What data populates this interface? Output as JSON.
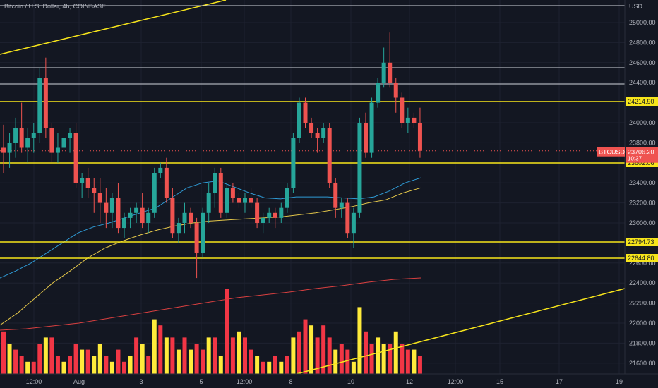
{
  "header": {
    "symbol_title": "Bitcoin / U.S. Dollar, 4h, COINBASE"
  },
  "axis": {
    "currency": "USD",
    "y_ticks": [
      25000,
      24800,
      24600,
      24400,
      24000,
      23800,
      23400,
      23200,
      23000,
      22600,
      22400,
      22200,
      22000,
      21800,
      21600
    ],
    "y_tick_labels": [
      "25000.00",
      "24800.00",
      "24600.00",
      "24400.00",
      "24000.00",
      "23800.00",
      "23400.00",
      "23200.00",
      "23000.00",
      "22600.00",
      "22400.00",
      "22200.00",
      "22000.00",
      "21800.00",
      "21600.00"
    ],
    "x_ticks": [
      "12:00",
      "Aug",
      "3",
      "5",
      "12:00",
      "8",
      "10",
      "12",
      "12:00",
      "15",
      "17",
      "19"
    ]
  },
  "price_tag": {
    "symbol": "BTCUSD",
    "price": "23706.20",
    "countdown": "10:37",
    "value": 23706.2
  },
  "levels": [
    {
      "label": "24214.90",
      "value": 24214.9
    },
    {
      "label": "23602.06",
      "value": 23602.06
    },
    {
      "label": "22794.73",
      "value": 22794.73
    },
    {
      "label": "22644.80",
      "value": 22644.8
    }
  ],
  "colors": {
    "background": "#131722",
    "up": "#26a69a",
    "down": "#ef5350",
    "level_line": "#f7e51b",
    "white_line": "#d1d4dc",
    "ma_blue": "#2f9bd6",
    "ma_yellow": "#e3c64a",
    "ma_red": "#d94040",
    "vol_red": "#f23645",
    "vol_yellow": "#ffeb3b"
  },
  "chart_data": {
    "type": "candlestick",
    "title": "Bitcoin / U.S. Dollar, 4h, COINBASE",
    "ylim": [
      21500,
      25200
    ],
    "candles": [
      [
        23750,
        23980,
        23500,
        23700
      ],
      [
        23700,
        23900,
        23550,
        23800
      ],
      [
        23800,
        24050,
        23650,
        23950
      ],
      [
        23950,
        24200,
        23700,
        23750
      ],
      [
        23750,
        23950,
        23600,
        23850
      ],
      [
        23850,
        24000,
        23700,
        23900
      ],
      [
        23900,
        24550,
        23800,
        24450
      ],
      [
        24450,
        24650,
        23850,
        23950
      ],
      [
        23950,
        24000,
        23600,
        23700
      ],
      [
        23700,
        23900,
        23600,
        23750
      ],
      [
        23750,
        23950,
        23650,
        23850
      ],
      [
        23850,
        23950,
        23700,
        23900
      ],
      [
        23900,
        24000,
        23350,
        23400
      ],
      [
        23400,
        23500,
        23250,
        23450
      ],
      [
        23450,
        23550,
        23250,
        23350
      ],
      [
        23350,
        23450,
        23100,
        23300
      ],
      [
        23300,
        23450,
        23000,
        23200
      ],
      [
        23200,
        23350,
        22950,
        23100
      ],
      [
        23100,
        23300,
        22950,
        23250
      ],
      [
        23250,
        23400,
        22900,
        22950
      ],
      [
        22950,
        23100,
        22850,
        23050
      ],
      [
        23050,
        23150,
        22950,
        23100
      ],
      [
        23100,
        23200,
        23000,
        23150
      ],
      [
        23150,
        23300,
        22950,
        23000
      ],
      [
        23000,
        23150,
        22900,
        23100
      ],
      [
        23100,
        23550,
        23050,
        23500
      ],
      [
        23500,
        23600,
        23450,
        23550
      ],
      [
        23550,
        23650,
        23200,
        23250
      ],
      [
        23250,
        23350,
        22850,
        22900
      ],
      [
        22900,
        23050,
        22800,
        23000
      ],
      [
        23000,
        23200,
        22900,
        23100
      ],
      [
        23100,
        23150,
        22950,
        23000
      ],
      [
        23000,
        23050,
        22450,
        22700
      ],
      [
        22700,
        23150,
        22650,
        23100
      ],
      [
        23100,
        23400,
        23000,
        23300
      ],
      [
        23300,
        23550,
        23150,
        23500
      ],
      [
        23500,
        23550,
        23050,
        23100
      ],
      [
        23100,
        23400,
        23050,
        23350
      ],
      [
        23350,
        23400,
        23200,
        23250
      ],
      [
        23250,
        23300,
        23150,
        23200
      ],
      [
        23200,
        23300,
        23100,
        23250
      ],
      [
        23250,
        23350,
        23150,
        23200
      ],
      [
        23200,
        23250,
        22950,
        23000
      ],
      [
        23000,
        23100,
        22900,
        23050
      ],
      [
        23050,
        23150,
        23000,
        23100
      ],
      [
        23100,
        23150,
        22950,
        23050
      ],
      [
        23050,
        23200,
        23000,
        23150
      ],
      [
        23150,
        23400,
        23100,
        23350
      ],
      [
        23350,
        23900,
        23300,
        23850
      ],
      [
        23850,
        24250,
        23800,
        24200
      ],
      [
        24200,
        24250,
        23950,
        24000
      ],
      [
        24000,
        24050,
        23850,
        23900
      ],
      [
        23900,
        23950,
        23700,
        23850
      ],
      [
        23850,
        24000,
        23800,
        23950
      ],
      [
        23950,
        24000,
        23350,
        23400
      ],
      [
        23400,
        23450,
        23050,
        23150
      ],
      [
        23150,
        23250,
        23050,
        23200
      ],
      [
        23200,
        23250,
        22850,
        22900
      ],
      [
        22900,
        23150,
        22750,
        23100
      ],
      [
        23100,
        24050,
        23050,
        24000
      ],
      [
        24000,
        24100,
        23650,
        23700
      ],
      [
        23700,
        24250,
        23650,
        24200
      ],
      [
        24200,
        24450,
        24150,
        24400
      ],
      [
        24400,
        24750,
        24350,
        24600
      ],
      [
        24600,
        24900,
        24350,
        24400
      ],
      [
        24400,
        24450,
        24100,
        24250
      ],
      [
        24250,
        24300,
        23950,
        24000
      ],
      [
        24000,
        24150,
        23900,
        24050
      ],
      [
        24050,
        24100,
        23950,
        24000
      ],
      [
        24000,
        24150,
        23650,
        23720
      ]
    ],
    "ma_blue": [
      22450,
      22520,
      22600,
      22700,
      22800,
      22900,
      22960,
      23000,
      23050,
      23100,
      23150,
      23250,
      23350,
      23400,
      23420,
      23360,
      23300,
      23250,
      23240,
      23260,
      23260,
      23260,
      23250,
      23240,
      23260,
      23320,
      23400,
      23450
    ],
    "ma_yellow": [
      21980,
      22100,
      22250,
      22400,
      22520,
      22650,
      22750,
      22820,
      22880,
      22930,
      22970,
      23000,
      23020,
      23030,
      23040,
      23050,
      23060,
      23080,
      23100,
      23130,
      23160,
      23200,
      23230,
      23300,
      23350
    ],
    "ma_red": [
      21700,
      21720,
      21760,
      21800,
      21860,
      21920,
      21980,
      22040,
      22100,
      22160,
      22200,
      22240,
      22290,
      22330,
      22380,
      22420,
      22440
    ],
    "volumes": [
      [
        7,
        0
      ],
      [
        5,
        1
      ],
      [
        4,
        0
      ],
      [
        3,
        0
      ],
      [
        2,
        1
      ],
      [
        2,
        0
      ],
      [
        5,
        0
      ],
      [
        6,
        1
      ],
      [
        6,
        0
      ],
      [
        3,
        0
      ],
      [
        2,
        1
      ],
      [
        3,
        0
      ],
      [
        5,
        0
      ],
      [
        4,
        1
      ],
      [
        4,
        0
      ],
      [
        3,
        1
      ],
      [
        5,
        1
      ],
      [
        3,
        0
      ],
      [
        2,
        1
      ],
      [
        4,
        0
      ],
      [
        2,
        0
      ],
      [
        3,
        1
      ],
      [
        6,
        0
      ],
      [
        5,
        1
      ],
      [
        3,
        0
      ],
      [
        9,
        1
      ],
      [
        8,
        0
      ],
      [
        6,
        1
      ],
      [
        6,
        0
      ],
      [
        4,
        1
      ],
      [
        6,
        0
      ],
      [
        4,
        1
      ],
      [
        5,
        0
      ],
      [
        4,
        0
      ],
      [
        6,
        1
      ],
      [
        6,
        0
      ],
      [
        3,
        1
      ],
      [
        14,
        0
      ],
      [
        6,
        0
      ],
      [
        7,
        1
      ],
      [
        6,
        0
      ],
      [
        4,
        0
      ],
      [
        3,
        1
      ],
      [
        2,
        0
      ],
      [
        2,
        1
      ],
      [
        3,
        0
      ],
      [
        2,
        1
      ],
      [
        3,
        0
      ],
      [
        6,
        1
      ],
      [
        7,
        0
      ],
      [
        9,
        0
      ],
      [
        8,
        1
      ],
      [
        6,
        0
      ],
      [
        8,
        0
      ],
      [
        6,
        0
      ],
      [
        4,
        1
      ],
      [
        5,
        0
      ],
      [
        4,
        0
      ],
      [
        2,
        1
      ],
      [
        11,
        1
      ],
      [
        7,
        0
      ],
      [
        5,
        0
      ],
      [
        6,
        1
      ],
      [
        5,
        1
      ],
      [
        5,
        0
      ],
      [
        7,
        1
      ],
      [
        5,
        0
      ],
      [
        4,
        0
      ],
      [
        4,
        1
      ],
      [
        3,
        0
      ]
    ]
  }
}
